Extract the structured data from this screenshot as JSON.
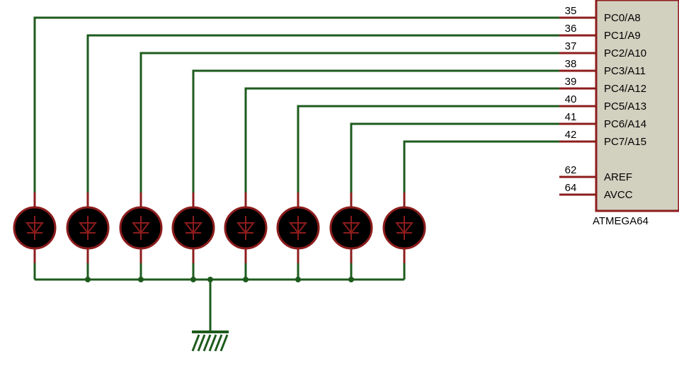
{
  "chip": {
    "part_name": "ATMEGA64",
    "body_color": "#d2d1c0",
    "outline_color": "#8c1c1c",
    "pins": [
      {
        "number": "35",
        "name": "PC0/A8",
        "connected": true
      },
      {
        "number": "36",
        "name": "PC1/A9",
        "connected": true
      },
      {
        "number": "37",
        "name": "PC2/A10",
        "connected": true
      },
      {
        "number": "38",
        "name": "PC3/A11",
        "connected": true
      },
      {
        "number": "39",
        "name": "PC4/A12",
        "connected": true
      },
      {
        "number": "40",
        "name": "PC5/A13",
        "connected": true
      },
      {
        "number": "41",
        "name": "PC6/A14",
        "connected": true
      },
      {
        "number": "42",
        "name": "PC7/A15",
        "connected": true
      },
      {
        "number": "62",
        "name": "AREF",
        "connected": false
      },
      {
        "number": "64",
        "name": "AVCC",
        "connected": false
      }
    ]
  },
  "leds": {
    "count": 8,
    "fill_color": "#000000",
    "outline_color": "#8c1c1c",
    "symbol_color": "#8c1c1c"
  },
  "wire_color": "#1d5b1d",
  "ground": {
    "icon": "ground-symbol-icon"
  }
}
